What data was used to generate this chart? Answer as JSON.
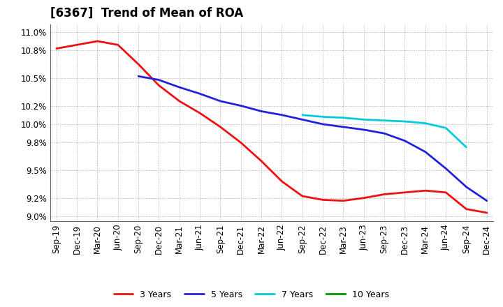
{
  "title": "[6367]  Trend of Mean of ROA",
  "x_labels": [
    "Sep-19",
    "Dec-19",
    "Mar-20",
    "Jun-20",
    "Sep-20",
    "Dec-20",
    "Mar-21",
    "Jun-21",
    "Sep-21",
    "Dec-21",
    "Mar-22",
    "Jun-22",
    "Sep-22",
    "Dec-22",
    "Mar-23",
    "Jun-23",
    "Sep-23",
    "Dec-23",
    "Mar-24",
    "Jun-24",
    "Sep-24",
    "Dec-24"
  ],
  "y_ticks": [
    9.0,
    9.2,
    9.5,
    9.8,
    10.0,
    10.2,
    10.5,
    10.8,
    11.0
  ],
  "y_tick_labels": [
    "9.0%",
    "9.2%",
    "9.5%",
    "9.8%",
    "10.0%",
    "10.2%",
    "10.5%",
    "10.8%",
    "11.0%"
  ],
  "ylim": [
    8.95,
    11.08
  ],
  "series": {
    "3 Years": {
      "color": "#ee1111",
      "data": [
        10.82,
        10.86,
        10.9,
        10.86,
        10.65,
        10.42,
        10.25,
        10.12,
        9.97,
        9.8,
        9.6,
        9.38,
        9.22,
        9.18,
        9.17,
        9.2,
        9.24,
        9.26,
        9.28,
        9.26,
        9.08,
        9.04
      ]
    },
    "5 Years": {
      "color": "#2222dd",
      "data": [
        null,
        null,
        null,
        null,
        10.52,
        10.48,
        10.4,
        10.33,
        10.25,
        10.2,
        10.14,
        10.1,
        10.05,
        10.0,
        9.97,
        9.94,
        9.9,
        9.82,
        9.7,
        9.52,
        9.32,
        9.17
      ]
    },
    "7 Years": {
      "color": "#00ccdd",
      "data": [
        null,
        null,
        null,
        null,
        null,
        null,
        null,
        null,
        null,
        null,
        null,
        null,
        10.1,
        10.08,
        10.07,
        10.05,
        10.04,
        10.03,
        10.01,
        9.96,
        9.75,
        null
      ]
    },
    "10 Years": {
      "color": "#009900",
      "data": [
        null,
        null,
        null,
        null,
        null,
        null,
        null,
        null,
        null,
        null,
        null,
        null,
        null,
        null,
        null,
        null,
        null,
        null,
        null,
        null,
        null,
        null
      ]
    }
  },
  "legend_entries": [
    "3 Years",
    "5 Years",
    "7 Years",
    "10 Years"
  ],
  "background_color": "#ffffff",
  "grid_color": "#999999",
  "title_fontsize": 12,
  "tick_fontsize": 8.5
}
